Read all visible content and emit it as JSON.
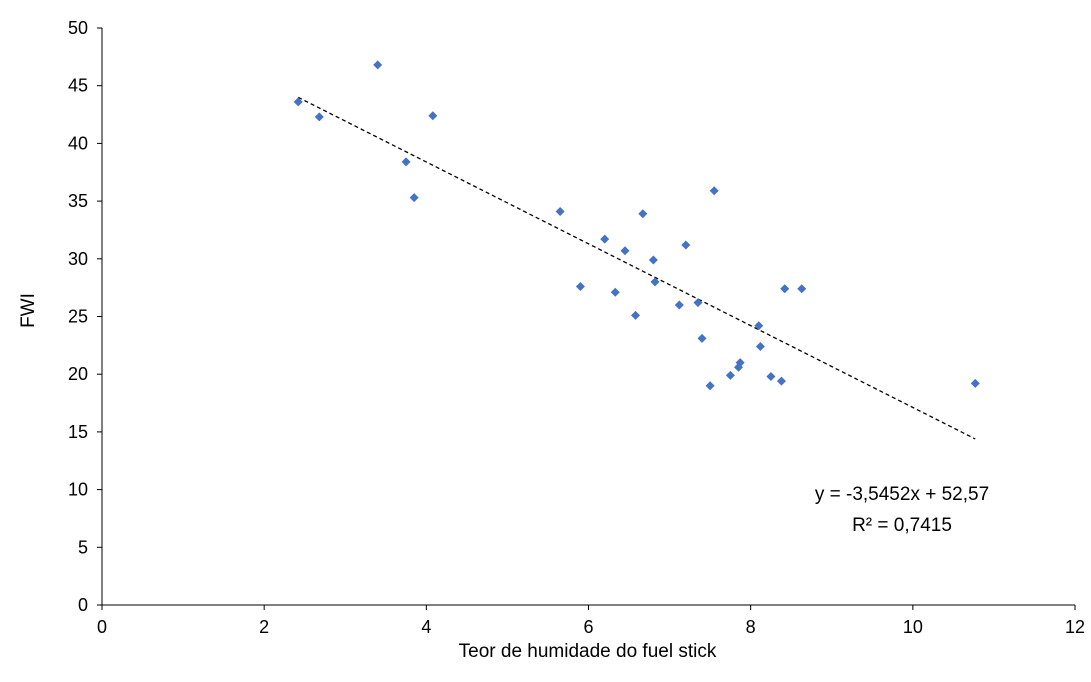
{
  "chart_data": {
    "type": "scatter",
    "title": "",
    "xlabel": "Teor de humidade do fuel stick",
    "ylabel": "FWI",
    "xlim": [
      0,
      12
    ],
    "ylim": [
      0,
      50
    ],
    "x_ticks": [
      "0",
      "2",
      "4",
      "6",
      "8",
      "10",
      "12"
    ],
    "y_ticks": [
      "0",
      "5",
      "10",
      "15",
      "20",
      "25",
      "30",
      "35",
      "40",
      "45",
      "50"
    ],
    "grid": false,
    "legend": "none",
    "marker_color": "#4472C4",
    "points": [
      {
        "x": 2.42,
        "y": 43.6
      },
      {
        "x": 2.68,
        "y": 42.3
      },
      {
        "x": 3.4,
        "y": 46.8
      },
      {
        "x": 3.75,
        "y": 38.4
      },
      {
        "x": 3.85,
        "y": 35.3
      },
      {
        "x": 4.08,
        "y": 42.4
      },
      {
        "x": 5.65,
        "y": 34.1
      },
      {
        "x": 5.9,
        "y": 27.6
      },
      {
        "x": 6.2,
        "y": 31.7
      },
      {
        "x": 6.33,
        "y": 27.1
      },
      {
        "x": 6.45,
        "y": 30.7
      },
      {
        "x": 6.58,
        "y": 25.1
      },
      {
        "x": 6.67,
        "y": 33.9
      },
      {
        "x": 6.8,
        "y": 29.9
      },
      {
        "x": 6.82,
        "y": 28.0
      },
      {
        "x": 7.12,
        "y": 26.0
      },
      {
        "x": 7.2,
        "y": 31.2
      },
      {
        "x": 7.35,
        "y": 26.2
      },
      {
        "x": 7.4,
        "y": 23.1
      },
      {
        "x": 7.5,
        "y": 19.0
      },
      {
        "x": 7.55,
        "y": 35.9
      },
      {
        "x": 7.75,
        "y": 19.9
      },
      {
        "x": 7.85,
        "y": 20.6
      },
      {
        "x": 7.87,
        "y": 21.0
      },
      {
        "x": 8.1,
        "y": 24.2
      },
      {
        "x": 8.12,
        "y": 22.4
      },
      {
        "x": 8.25,
        "y": 19.8
      },
      {
        "x": 8.38,
        "y": 19.4
      },
      {
        "x": 8.42,
        "y": 27.4
      },
      {
        "x": 8.63,
        "y": 27.4
      },
      {
        "x": 10.77,
        "y": 19.2
      }
    ],
    "trendline": {
      "slope": -3.5452,
      "intercept": 52.57,
      "x_range": [
        2.42,
        10.77
      ],
      "style": "dashed",
      "color": "#000000",
      "equation": "y = -3,5452x + 52,57",
      "r_squared": "R² = 0,7415"
    }
  }
}
